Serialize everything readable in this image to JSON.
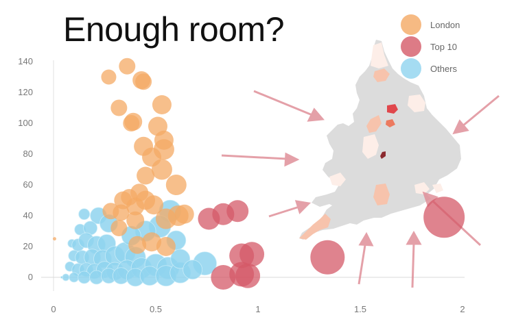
{
  "title": "Enough room?",
  "legend": [
    {
      "label": "London",
      "color": "#f4a964"
    },
    {
      "label": "Top 10",
      "color": "#d45a68"
    },
    {
      "label": "Others",
      "color": "#8fd3ef"
    }
  ],
  "axes": {
    "y_ticks": [
      "140",
      "120",
      "100",
      "80",
      "60",
      "40",
      "20",
      "0"
    ],
    "x_ticks": [
      "0",
      "0.5",
      "1",
      "1.5",
      "2"
    ]
  },
  "chart_data": {
    "type": "scatter",
    "title": "Enough room?",
    "xlabel": "",
    "ylabel": "",
    "xlim": [
      0,
      2
    ],
    "ylim": [
      0,
      140
    ],
    "grid": false,
    "legend_position": "top-right",
    "x_ticks": [
      0,
      0.5,
      1,
      1.5,
      2
    ],
    "y_ticks": [
      0,
      20,
      40,
      60,
      80,
      100,
      120,
      140
    ],
    "series": [
      {
        "name": "London",
        "color": "#f4a964",
        "points": [
          {
            "x": 0.36,
            "y": 137,
            "r": 12
          },
          {
            "x": 0.27,
            "y": 130,
            "r": 11
          },
          {
            "x": 0.43,
            "y": 128,
            "r": 13
          },
          {
            "x": 0.44,
            "y": 127,
            "r": 12
          },
          {
            "x": 0.53,
            "y": 112,
            "r": 14
          },
          {
            "x": 0.32,
            "y": 110,
            "r": 12
          },
          {
            "x": 0.39,
            "y": 101,
            "r": 13
          },
          {
            "x": 0.38,
            "y": 100,
            "r": 12
          },
          {
            "x": 0.51,
            "y": 98,
            "r": 14
          },
          {
            "x": 0.54,
            "y": 89,
            "r": 14
          },
          {
            "x": 0.44,
            "y": 85,
            "r": 14
          },
          {
            "x": 0.54,
            "y": 83,
            "r": 15
          },
          {
            "x": 0.48,
            "y": 78,
            "r": 14
          },
          {
            "x": 0.53,
            "y": 70,
            "r": 15
          },
          {
            "x": 0.45,
            "y": 66,
            "r": 13
          },
          {
            "x": 0.6,
            "y": 60,
            "r": 15
          },
          {
            "x": 0.34,
            "y": 50,
            "r": 13
          },
          {
            "x": 0.37,
            "y": 52,
            "r": 12
          },
          {
            "x": 0.42,
            "y": 55,
            "r": 13
          },
          {
            "x": 0.45,
            "y": 50,
            "r": 14
          },
          {
            "x": 0.49,
            "y": 47,
            "r": 14
          },
          {
            "x": 0.4,
            "y": 46,
            "r": 13
          },
          {
            "x": 0.28,
            "y": 43,
            "r": 12
          },
          {
            "x": 0.33,
            "y": 42,
            "r": 12
          },
          {
            "x": 0.55,
            "y": 38,
            "r": 15
          },
          {
            "x": 0.61,
            "y": 40,
            "r": 15
          },
          {
            "x": 0.64,
            "y": 41,
            "r": 14
          },
          {
            "x": 0.4,
            "y": 37,
            "r": 13
          },
          {
            "x": 0.32,
            "y": 32,
            "r": 12
          },
          {
            "x": 0.41,
            "y": 21,
            "r": 13
          },
          {
            "x": 0.48,
            "y": 23,
            "r": 14
          },
          {
            "x": 0.55,
            "y": 20,
            "r": 14
          },
          {
            "x": 0.005,
            "y": 25,
            "r": 2.5
          }
        ]
      },
      {
        "name": "Top 10",
        "color": "#d45a68",
        "points": [
          {
            "x": 0.76,
            "y": 38,
            "r": 16
          },
          {
            "x": 0.83,
            "y": 41,
            "r": 16
          },
          {
            "x": 0.9,
            "y": 43,
            "r": 16
          },
          {
            "x": 0.92,
            "y": 14,
            "r": 18
          },
          {
            "x": 0.97,
            "y": 15,
            "r": 18
          },
          {
            "x": 0.83,
            "y": 0,
            "r": 18
          },
          {
            "x": 0.92,
            "y": 2,
            "r": 18
          },
          {
            "x": 0.95,
            "y": 1,
            "r": 18
          },
          {
            "x": 1.34,
            "y": 13,
            "r": 25
          },
          {
            "x": 1.91,
            "y": 39,
            "r": 30
          }
        ]
      },
      {
        "name": "Others",
        "color": "#8fd3ef",
        "points": [
          {
            "x": 0.15,
            "y": 41,
            "r": 8
          },
          {
            "x": 0.22,
            "y": 40,
            "r": 12
          },
          {
            "x": 0.27,
            "y": 35,
            "r": 13
          },
          {
            "x": 0.13,
            "y": 31,
            "r": 8
          },
          {
            "x": 0.18,
            "y": 32,
            "r": 10
          },
          {
            "x": 0.09,
            "y": 22,
            "r": 6
          },
          {
            "x": 0.12,
            "y": 21,
            "r": 9
          },
          {
            "x": 0.16,
            "y": 24,
            "r": 11
          },
          {
            "x": 0.21,
            "y": 21,
            "r": 13
          },
          {
            "x": 0.26,
            "y": 22,
            "r": 13
          },
          {
            "x": 0.1,
            "y": 14,
            "r": 8
          },
          {
            "x": 0.14,
            "y": 13,
            "r": 10
          },
          {
            "x": 0.19,
            "y": 13,
            "r": 12
          },
          {
            "x": 0.24,
            "y": 12,
            "r": 13
          },
          {
            "x": 0.3,
            "y": 14,
            "r": 14
          },
          {
            "x": 0.35,
            "y": 16,
            "r": 15
          },
          {
            "x": 0.4,
            "y": 13,
            "r": 15
          },
          {
            "x": 0.08,
            "y": 7,
            "r": 7
          },
          {
            "x": 0.12,
            "y": 5,
            "r": 9
          },
          {
            "x": 0.16,
            "y": 5,
            "r": 10
          },
          {
            "x": 0.2,
            "y": 4,
            "r": 11
          },
          {
            "x": 0.25,
            "y": 5,
            "r": 12
          },
          {
            "x": 0.3,
            "y": 4,
            "r": 13
          },
          {
            "x": 0.36,
            "y": 5,
            "r": 14
          },
          {
            "x": 0.43,
            "y": 6,
            "r": 15
          },
          {
            "x": 0.5,
            "y": 8,
            "r": 16
          },
          {
            "x": 0.56,
            "y": 6,
            "r": 16
          },
          {
            "x": 0.06,
            "y": 0,
            "r": 5
          },
          {
            "x": 0.1,
            "y": 0,
            "r": 7
          },
          {
            "x": 0.15,
            "y": 0,
            "r": 9
          },
          {
            "x": 0.21,
            "y": 0,
            "r": 10
          },
          {
            "x": 0.27,
            "y": 1,
            "r": 11
          },
          {
            "x": 0.33,
            "y": 1,
            "r": 12
          },
          {
            "x": 0.4,
            "y": 0,
            "r": 13
          },
          {
            "x": 0.47,
            "y": 1,
            "r": 14
          },
          {
            "x": 0.55,
            "y": 1,
            "r": 15
          },
          {
            "x": 0.62,
            "y": 3,
            "r": 15
          },
          {
            "x": 0.74,
            "y": 9,
            "r": 17
          },
          {
            "x": 0.6,
            "y": 24,
            "r": 14
          },
          {
            "x": 0.57,
            "y": 43,
            "r": 16
          },
          {
            "x": 0.52,
            "y": 33,
            "r": 16
          },
          {
            "x": 0.45,
            "y": 30,
            "r": 15
          },
          {
            "x": 0.38,
            "y": 27,
            "r": 14
          },
          {
            "x": 0.62,
            "y": 12,
            "r": 14
          },
          {
            "x": 0.68,
            "y": 5,
            "r": 14
          },
          {
            "x": 0.04,
            "y": 0,
            "r": 1.5
          }
        ]
      }
    ]
  },
  "map": {
    "caption": "",
    "annotation_arrows": 7,
    "highlight_colors": {
      "land": "#dddddd",
      "light": "#fdeee8",
      "medium": "#f7c3ac",
      "strong": "#e0474c",
      "darkest": "#8b2a2f"
    }
  }
}
